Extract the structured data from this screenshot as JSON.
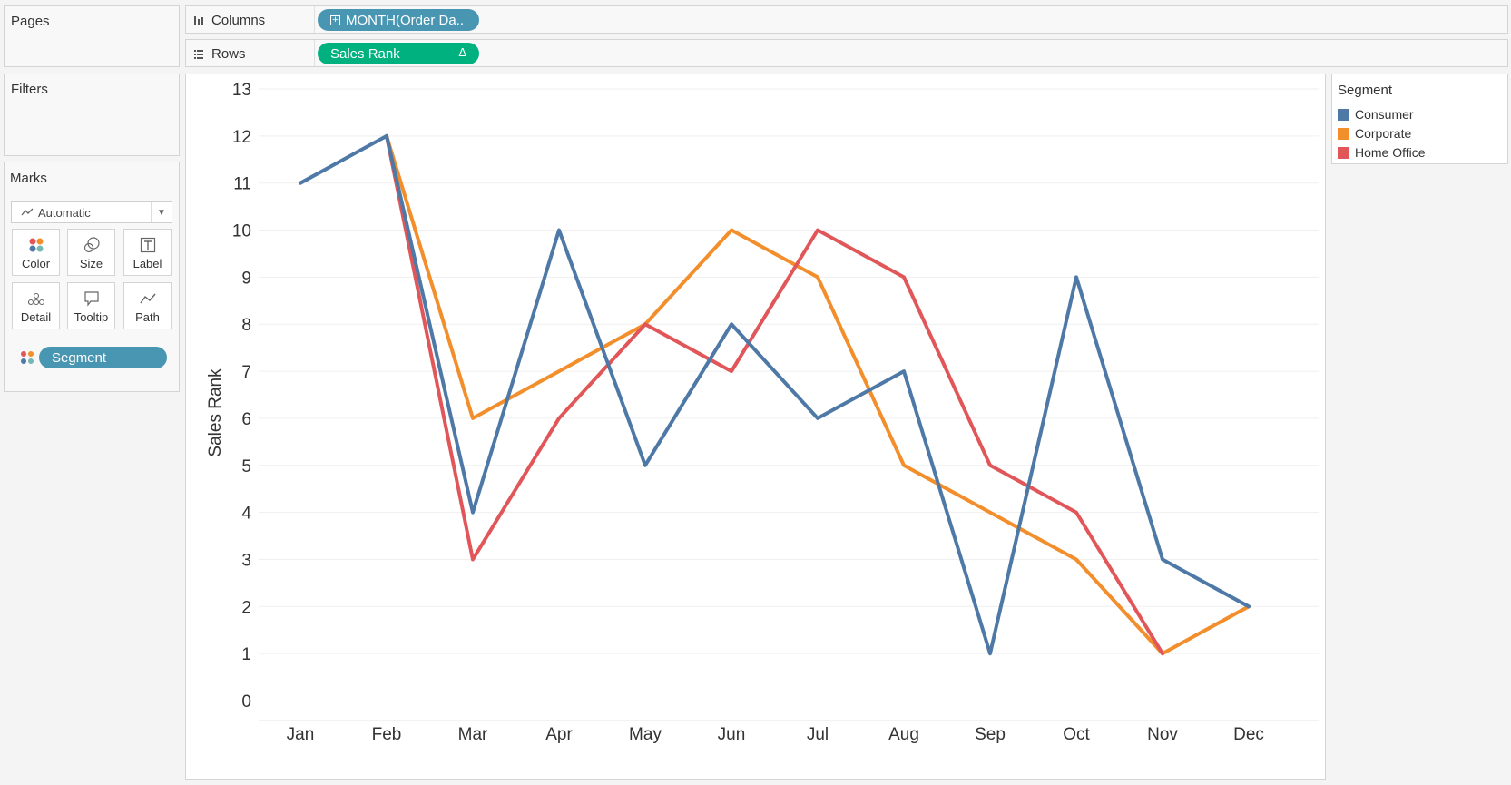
{
  "pages": {
    "title": "Pages"
  },
  "filters": {
    "title": "Filters"
  },
  "columns_shelf": {
    "label": "Columns",
    "pill": "MONTH(Order Da.."
  },
  "rows_shelf": {
    "label": "Rows",
    "pill": "Sales Rank",
    "pill_badge": "Δ"
  },
  "marks": {
    "title": "Marks",
    "type": "Automatic",
    "cards": [
      "Color",
      "Size",
      "Label",
      "Detail",
      "Tooltip",
      "Path"
    ],
    "pill": "Segment"
  },
  "legend": {
    "title": "Segment",
    "items": [
      {
        "label": "Consumer",
        "color": "#4e79a7"
      },
      {
        "label": "Corporate",
        "color": "#f28e2b"
      },
      {
        "label": "Home Office",
        "color": "#e15759"
      }
    ]
  },
  "chart_data": {
    "type": "line",
    "ylabel": "Sales Rank",
    "xlabel": "",
    "categories": [
      "Jan",
      "Feb",
      "Mar",
      "Apr",
      "May",
      "Jun",
      "Jul",
      "Aug",
      "Sep",
      "Oct",
      "Nov",
      "Dec"
    ],
    "yticks": [
      0,
      1,
      2,
      3,
      4,
      5,
      6,
      7,
      8,
      9,
      10,
      11,
      12,
      13
    ],
    "ylim": [
      0,
      13
    ],
    "grid": true,
    "series": [
      {
        "name": "Corporate",
        "color": "#f28e2b",
        "values": [
          null,
          12,
          6,
          7,
          8,
          10,
          9,
          5,
          4,
          3,
          1,
          2
        ]
      },
      {
        "name": "Home Office",
        "color": "#e15759",
        "values": [
          null,
          12,
          3,
          6,
          8,
          7,
          10,
          9,
          5,
          4,
          1,
          null
        ]
      },
      {
        "name": "Consumer",
        "color": "#4e79a7",
        "values": [
          11,
          12,
          4,
          10,
          5,
          8,
          6,
          7,
          1,
          9,
          3,
          2
        ]
      }
    ]
  }
}
